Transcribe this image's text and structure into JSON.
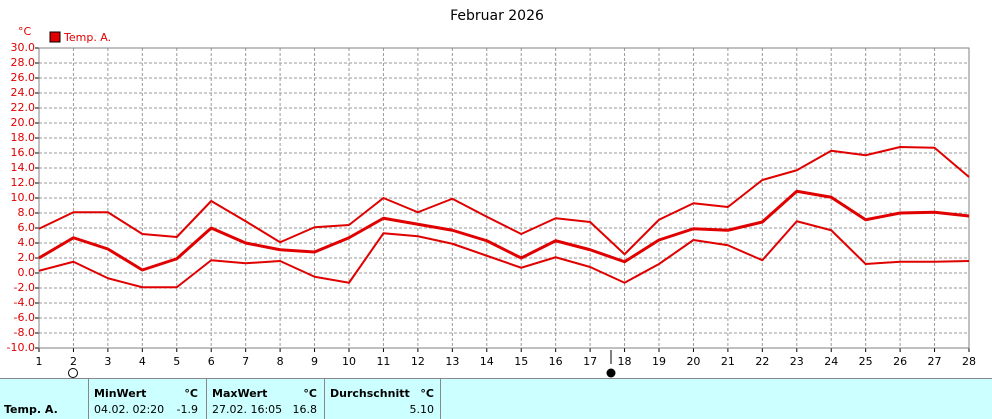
{
  "chart_data": {
    "type": "line",
    "title": "Februar 2026",
    "y_unit": "°C",
    "x": [
      1,
      2,
      3,
      4,
      5,
      6,
      7,
      8,
      9,
      10,
      11,
      12,
      13,
      14,
      15,
      16,
      17,
      18,
      19,
      20,
      21,
      22,
      23,
      24,
      25,
      26,
      27,
      28
    ],
    "xlim": [
      1,
      28
    ],
    "xticks": [
      1,
      2,
      3,
      4,
      5,
      6,
      7,
      8,
      9,
      10,
      11,
      12,
      13,
      14,
      15,
      16,
      17,
      18,
      19,
      20,
      21,
      22,
      23,
      24,
      25,
      26,
      27,
      28
    ],
    "ylim": [
      -10,
      30
    ],
    "yticks": [
      {
        "value": 30,
        "label": "30.0"
      },
      {
        "value": 28,
        "label": "28.0"
      },
      {
        "value": 26,
        "label": "26.0"
      },
      {
        "value": 24,
        "label": "24.0"
      },
      {
        "value": 22,
        "label": "22.0"
      },
      {
        "value": 20,
        "label": "20.0"
      },
      {
        "value": 18,
        "label": "18.0"
      },
      {
        "value": 16,
        "label": "16.0"
      },
      {
        "value": 14,
        "label": "14.0"
      },
      {
        "value": 12,
        "label": "12.0"
      },
      {
        "value": 10,
        "label": "10.0"
      },
      {
        "value": 8,
        "label": "8.0"
      },
      {
        "value": 6,
        "label": "6.0"
      },
      {
        "value": 4,
        "label": "4.0"
      },
      {
        "value": 2,
        "label": "2.0"
      },
      {
        "value": 0,
        "label": "0.0"
      },
      {
        "value": -2,
        "label": "-2.0"
      },
      {
        "value": -4,
        "label": "-4.0"
      },
      {
        "value": -6,
        "label": "-6.0"
      },
      {
        "value": -8,
        "label": "-8.0"
      },
      {
        "value": -10,
        "label": "-10.0"
      }
    ],
    "grid": true,
    "series": [
      {
        "name": "Temp. A.",
        "color": "#e00000",
        "values": [
          2.0,
          4.7,
          3.2,
          0.4,
          1.9,
          6.0,
          4.0,
          3.1,
          2.8,
          4.7,
          7.3,
          6.5,
          5.7,
          4.3,
          2.0,
          4.3,
          3.1,
          1.5,
          4.4,
          5.9,
          5.7,
          6.8,
          10.9,
          10.1,
          7.1,
          8.0,
          8.1,
          7.6
        ]
      },
      {
        "color": "#e00000",
        "values": [
          5.9,
          8.1,
          8.1,
          5.2,
          4.8,
          9.6,
          6.9,
          4.1,
          6.1,
          6.4,
          10.0,
          8.1,
          9.9,
          7.5,
          5.2,
          7.3,
          6.8,
          2.5,
          7.1,
          9.3,
          8.8,
          12.4,
          13.7,
          16.3,
          15.7,
          16.8,
          16.7,
          12.8
        ]
      },
      {
        "color": "#e00000",
        "values": [
          0.3,
          1.5,
          -0.7,
          -1.9,
          -1.9,
          1.7,
          1.3,
          1.6,
          -0.5,
          -1.3,
          5.3,
          4.9,
          3.9,
          2.3,
          0.7,
          2.1,
          0.8,
          -1.3,
          1.2,
          4.4,
          3.7,
          1.7,
          6.9,
          5.7,
          1.2,
          1.5,
          1.5,
          1.6
        ]
      }
    ]
  },
  "stats": {
    "row_label": "Temp. A.",
    "min": {
      "title": "MinWert",
      "unit": "°C",
      "time": "04.02.  02:20",
      "value": "-1.9"
    },
    "max": {
      "title": "MaxWert",
      "unit": "°C",
      "time": "27.02.  16:05",
      "value": "16.8"
    },
    "avg": {
      "title": "Durchschnitt",
      "unit": "°C",
      "value": "5.10"
    }
  }
}
